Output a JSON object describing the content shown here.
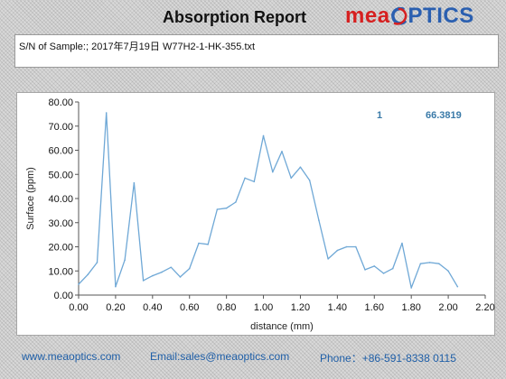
{
  "header": {
    "title": "Absorption Report",
    "logo_part1": "mea",
    "logo_part2": "PTICS"
  },
  "info": {
    "sample_line": "S/N of Sample:; 2017年7月19日    W77H2-1-HK-355.txt"
  },
  "footer": {
    "website": "www.meaoptics.com",
    "email": "Email:sales@meaoptics.com",
    "phone": "Phone：+86-591-8338 0115"
  },
  "colors": {
    "line": "#6fa8d6",
    "logo_red": "#d62020",
    "logo_blue": "#2a5fb0",
    "footer_text": "#1f5fa8"
  },
  "chart_data": {
    "type": "line",
    "title": "",
    "xlabel": "distance (mm)",
    "ylabel": "Surface (ppm)",
    "xlim": [
      0.0,
      2.2
    ],
    "ylim": [
      0.0,
      80.0
    ],
    "x_ticks": [
      "0.00",
      "0.20",
      "0.40",
      "0.60",
      "0.80",
      "1.00",
      "1.20",
      "1.40",
      "1.60",
      "1.80",
      "2.00",
      "2.20"
    ],
    "y_ticks": [
      "0.00",
      "10.00",
      "20.00",
      "30.00",
      "40.00",
      "50.00",
      "60.00",
      "70.00",
      "80.00"
    ],
    "grid": false,
    "legend": "none",
    "annotations": [
      {
        "label": "1",
        "value": "66.3819"
      }
    ],
    "series": [
      {
        "x": [
          0.0,
          0.05,
          0.1,
          0.15,
          0.2,
          0.25,
          0.3,
          0.35,
          0.4,
          0.45,
          0.5,
          0.55,
          0.6,
          0.65,
          0.7,
          0.75,
          0.8,
          0.85,
          0.9,
          0.95,
          1.0,
          1.05,
          1.1,
          1.15,
          1.2,
          1.25,
          1.3,
          1.35,
          1.4,
          1.45,
          1.5,
          1.55,
          1.6,
          1.65,
          1.7,
          1.75,
          1.8,
          1.85,
          1.9,
          1.95,
          2.0,
          2.05
        ],
        "y": [
          4.5,
          8.5,
          13.5,
          75.5,
          3.5,
          14.5,
          46.5,
          6.0,
          8.0,
          9.5,
          11.5,
          7.5,
          11.0,
          21.5,
          21.0,
          35.5,
          36.0,
          38.5,
          48.5,
          47.0,
          66.0,
          51.0,
          59.5,
          48.5,
          53.0,
          47.5,
          31.0,
          15.0,
          18.5,
          20.0,
          20.0,
          10.5,
          12.0,
          9.0,
          11.0,
          21.5,
          3.0,
          13.0,
          13.5,
          13.0,
          10.0,
          3.5
        ]
      }
    ]
  }
}
